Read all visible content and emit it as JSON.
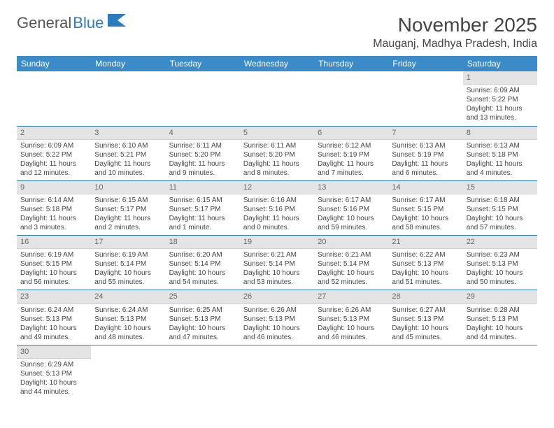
{
  "logo": {
    "part1": "General",
    "part2": "Blue"
  },
  "title": "November 2025",
  "location": "Mauganj, Madhya Pradesh, India",
  "colors": {
    "header_bg": "#3b8bc9",
    "header_text": "#ffffff",
    "daynum_bg": "#e4e4e4",
    "border": "#2b7bbf",
    "logo_blue": "#2b7bbf",
    "text": "#444444"
  },
  "typography": {
    "title_fontsize": 28,
    "location_fontsize": 16,
    "weekday_fontsize": 12,
    "daynum_fontsize": 11,
    "cell_fontsize": 10
  },
  "weekdays": [
    "Sunday",
    "Monday",
    "Tuesday",
    "Wednesday",
    "Thursday",
    "Friday",
    "Saturday"
  ],
  "weeks": [
    [
      null,
      null,
      null,
      null,
      null,
      null,
      {
        "n": "1",
        "sr": "Sunrise: 6:09 AM",
        "ss": "Sunset: 5:22 PM",
        "dl": "Daylight: 11 hours and 13 minutes."
      }
    ],
    [
      {
        "n": "2",
        "sr": "Sunrise: 6:09 AM",
        "ss": "Sunset: 5:22 PM",
        "dl": "Daylight: 11 hours and 12 minutes."
      },
      {
        "n": "3",
        "sr": "Sunrise: 6:10 AM",
        "ss": "Sunset: 5:21 PM",
        "dl": "Daylight: 11 hours and 10 minutes."
      },
      {
        "n": "4",
        "sr": "Sunrise: 6:11 AM",
        "ss": "Sunset: 5:20 PM",
        "dl": "Daylight: 11 hours and 9 minutes."
      },
      {
        "n": "5",
        "sr": "Sunrise: 6:11 AM",
        "ss": "Sunset: 5:20 PM",
        "dl": "Daylight: 11 hours and 8 minutes."
      },
      {
        "n": "6",
        "sr": "Sunrise: 6:12 AM",
        "ss": "Sunset: 5:19 PM",
        "dl": "Daylight: 11 hours and 7 minutes."
      },
      {
        "n": "7",
        "sr": "Sunrise: 6:13 AM",
        "ss": "Sunset: 5:19 PM",
        "dl": "Daylight: 11 hours and 6 minutes."
      },
      {
        "n": "8",
        "sr": "Sunrise: 6:13 AM",
        "ss": "Sunset: 5:18 PM",
        "dl": "Daylight: 11 hours and 4 minutes."
      }
    ],
    [
      {
        "n": "9",
        "sr": "Sunrise: 6:14 AM",
        "ss": "Sunset: 5:18 PM",
        "dl": "Daylight: 11 hours and 3 minutes."
      },
      {
        "n": "10",
        "sr": "Sunrise: 6:15 AM",
        "ss": "Sunset: 5:17 PM",
        "dl": "Daylight: 11 hours and 2 minutes."
      },
      {
        "n": "11",
        "sr": "Sunrise: 6:15 AM",
        "ss": "Sunset: 5:17 PM",
        "dl": "Daylight: 11 hours and 1 minute."
      },
      {
        "n": "12",
        "sr": "Sunrise: 6:16 AM",
        "ss": "Sunset: 5:16 PM",
        "dl": "Daylight: 11 hours and 0 minutes."
      },
      {
        "n": "13",
        "sr": "Sunrise: 6:17 AM",
        "ss": "Sunset: 5:16 PM",
        "dl": "Daylight: 10 hours and 59 minutes."
      },
      {
        "n": "14",
        "sr": "Sunrise: 6:17 AM",
        "ss": "Sunset: 5:15 PM",
        "dl": "Daylight: 10 hours and 58 minutes."
      },
      {
        "n": "15",
        "sr": "Sunrise: 6:18 AM",
        "ss": "Sunset: 5:15 PM",
        "dl": "Daylight: 10 hours and 57 minutes."
      }
    ],
    [
      {
        "n": "16",
        "sr": "Sunrise: 6:19 AM",
        "ss": "Sunset: 5:15 PM",
        "dl": "Daylight: 10 hours and 56 minutes."
      },
      {
        "n": "17",
        "sr": "Sunrise: 6:19 AM",
        "ss": "Sunset: 5:14 PM",
        "dl": "Daylight: 10 hours and 55 minutes."
      },
      {
        "n": "18",
        "sr": "Sunrise: 6:20 AM",
        "ss": "Sunset: 5:14 PM",
        "dl": "Daylight: 10 hours and 54 minutes."
      },
      {
        "n": "19",
        "sr": "Sunrise: 6:21 AM",
        "ss": "Sunset: 5:14 PM",
        "dl": "Daylight: 10 hours and 53 minutes."
      },
      {
        "n": "20",
        "sr": "Sunrise: 6:21 AM",
        "ss": "Sunset: 5:14 PM",
        "dl": "Daylight: 10 hours and 52 minutes."
      },
      {
        "n": "21",
        "sr": "Sunrise: 6:22 AM",
        "ss": "Sunset: 5:13 PM",
        "dl": "Daylight: 10 hours and 51 minutes."
      },
      {
        "n": "22",
        "sr": "Sunrise: 6:23 AM",
        "ss": "Sunset: 5:13 PM",
        "dl": "Daylight: 10 hours and 50 minutes."
      }
    ],
    [
      {
        "n": "23",
        "sr": "Sunrise: 6:24 AM",
        "ss": "Sunset: 5:13 PM",
        "dl": "Daylight: 10 hours and 49 minutes."
      },
      {
        "n": "24",
        "sr": "Sunrise: 6:24 AM",
        "ss": "Sunset: 5:13 PM",
        "dl": "Daylight: 10 hours and 48 minutes."
      },
      {
        "n": "25",
        "sr": "Sunrise: 6:25 AM",
        "ss": "Sunset: 5:13 PM",
        "dl": "Daylight: 10 hours and 47 minutes."
      },
      {
        "n": "26",
        "sr": "Sunrise: 6:26 AM",
        "ss": "Sunset: 5:13 PM",
        "dl": "Daylight: 10 hours and 46 minutes."
      },
      {
        "n": "27",
        "sr": "Sunrise: 6:26 AM",
        "ss": "Sunset: 5:13 PM",
        "dl": "Daylight: 10 hours and 46 minutes."
      },
      {
        "n": "28",
        "sr": "Sunrise: 6:27 AM",
        "ss": "Sunset: 5:13 PM",
        "dl": "Daylight: 10 hours and 45 minutes."
      },
      {
        "n": "29",
        "sr": "Sunrise: 6:28 AM",
        "ss": "Sunset: 5:13 PM",
        "dl": "Daylight: 10 hours and 44 minutes."
      }
    ],
    [
      {
        "n": "30",
        "sr": "Sunrise: 6:29 AM",
        "ss": "Sunset: 5:13 PM",
        "dl": "Daylight: 10 hours and 44 minutes."
      },
      null,
      null,
      null,
      null,
      null,
      null
    ]
  ]
}
